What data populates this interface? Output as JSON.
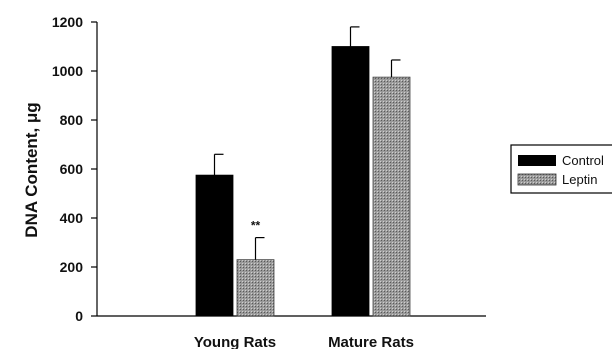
{
  "chart_data": {
    "type": "bar",
    "categories": [
      "Young Rats",
      "Mature Rats"
    ],
    "series": [
      {
        "name": "Control",
        "values": [
          575,
          1100
        ],
        "errors": [
          85,
          80
        ],
        "color": "#000000"
      },
      {
        "name": "Leptin",
        "values": [
          230,
          975
        ],
        "errors": [
          90,
          70
        ],
        "color": "#8c8c8c",
        "pattern": "hatched"
      }
    ],
    "ylabel": "DNA Content, μg",
    "xlabel": "",
    "ylim": [
      0,
      1200
    ],
    "yticks": [
      0,
      200,
      400,
      600,
      800,
      1000,
      1200
    ],
    "annotations": [
      {
        "text": "**",
        "category": "Young Rats",
        "series": "Leptin"
      }
    ],
    "legend_position": "right",
    "grid": false
  }
}
